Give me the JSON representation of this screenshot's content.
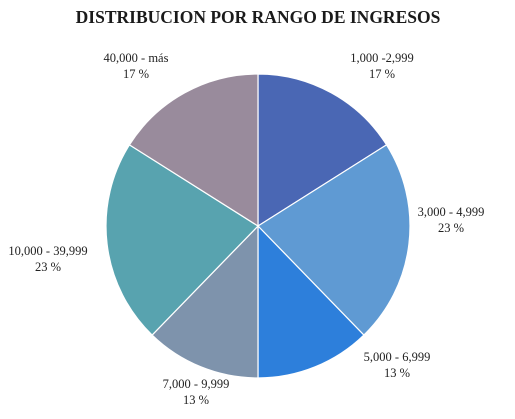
{
  "chart_data": {
    "type": "pie",
    "title": "DISTRIBUCION POR RANGO DE INGRESOS",
    "slices": [
      {
        "label": "1,000 -2,999",
        "value": 17,
        "display": "17 %",
        "color": "#4a67b4"
      },
      {
        "label": "3,000 - 4,999",
        "value": 23,
        "display": "23 %",
        "color": "#5f9ad3"
      },
      {
        "label": "5,000 - 6,999",
        "value": 13,
        "display": "13 %",
        "color": "#2d7fdb"
      },
      {
        "label": "7,000 - 9,999",
        "value": 13,
        "display": "13 %",
        "color": "#7e93ac"
      },
      {
        "label": "10,000 - 39,999",
        "value": 23,
        "display": "23 %",
        "color": "#58a3af"
      },
      {
        "label": "40,000 - más",
        "value": 17,
        "display": "17 %",
        "color": "#998b9c"
      }
    ]
  }
}
